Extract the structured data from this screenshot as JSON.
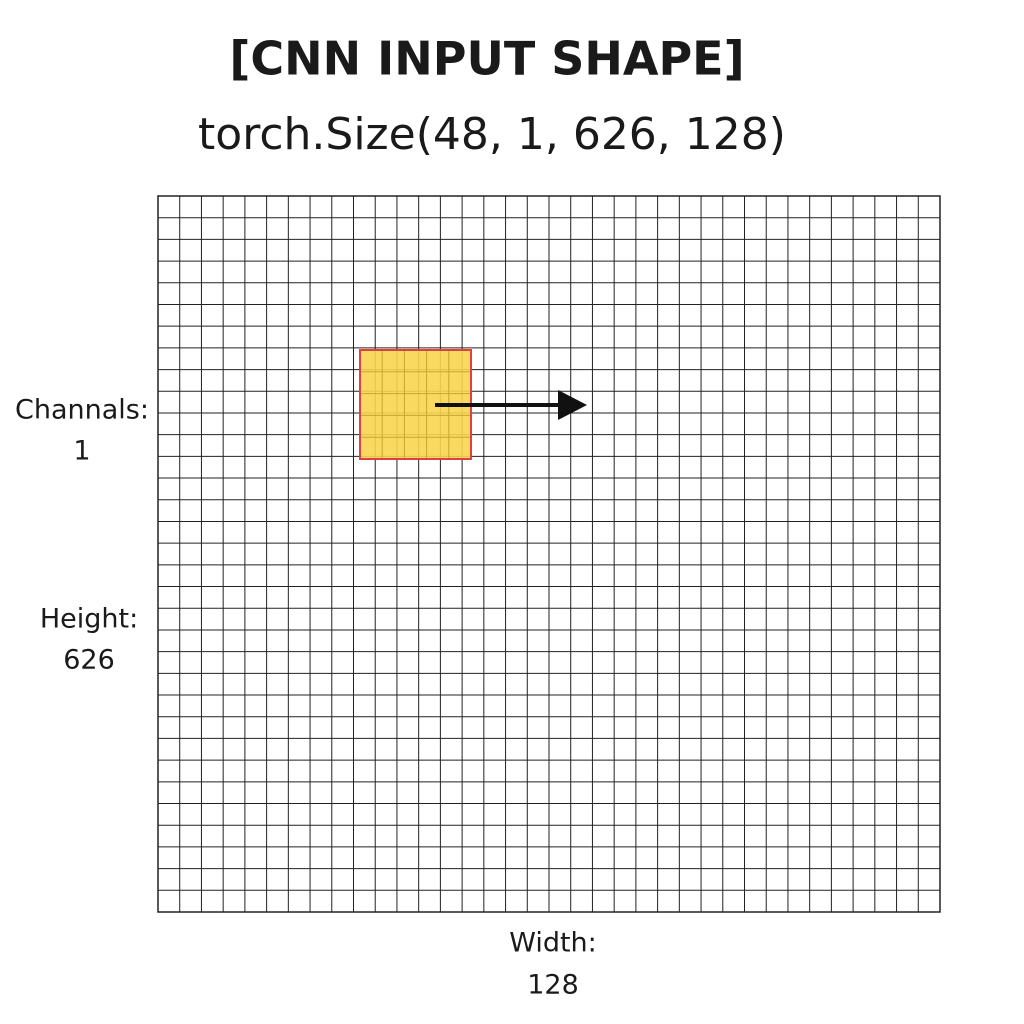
{
  "header": {
    "title": "[CNN INPUT SHAPE]",
    "subtitle": "torch.Size(48, 1, 626, 128)"
  },
  "labels": {
    "channels": {
      "name": "Channals:",
      "value": "1"
    },
    "height": {
      "name": "Height:",
      "value": "626"
    },
    "width": {
      "name": "Width:",
      "value": "128"
    }
  }
}
